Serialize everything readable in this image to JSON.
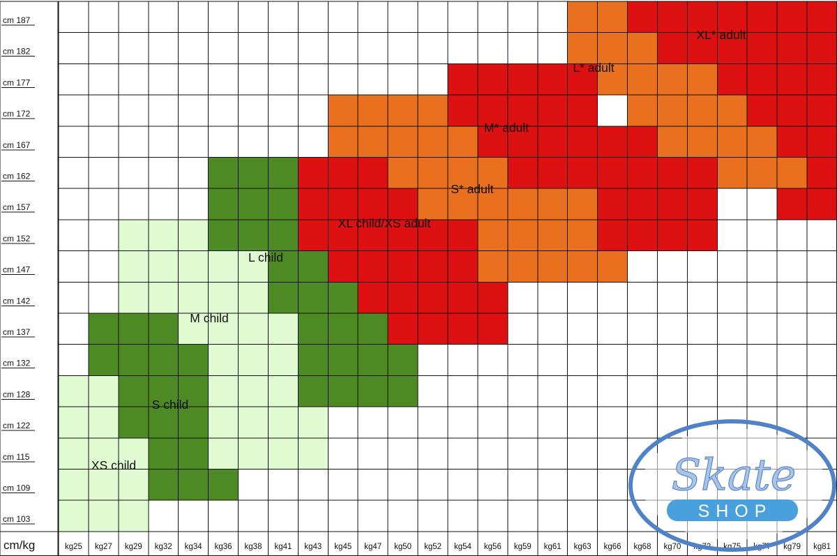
{
  "chart_data": {
    "type": "heatmap",
    "title": "",
    "axis_corner_label": "cm/kg",
    "x_ticks": [
      "kg25",
      "kg27",
      "kg29",
      "kg32",
      "kg34",
      "kg36",
      "kg38",
      "kg41",
      "kg43",
      "kg45",
      "kg47",
      "kg50",
      "kg52",
      "kg54",
      "kg56",
      "kg59",
      "kg61",
      "kg63",
      "kg66",
      "kg68",
      "kg70",
      "kg72",
      "kg75",
      "kg77",
      "kg79",
      "kg81"
    ],
    "y_ticks": [
      "cm 187",
      "cm 182",
      "cm 177",
      "cm 172",
      "cm 167",
      "cm 162",
      "cm 157",
      "cm 152",
      "cm 147",
      "cm 142",
      "cm 137",
      "cm 132",
      "cm 128",
      "cm 122",
      "cm 115",
      "cm 109",
      "cm 103"
    ],
    "grid": true,
    "zones": [
      {
        "label": "XS child",
        "color": "#e0fbd2",
        "rows": {
          "128": [
            0,
            2
          ],
          "122": [
            0,
            2
          ],
          "115": [
            0,
            2
          ],
          "109": [
            0,
            2
          ],
          "103": [
            0,
            2
          ]
        }
      },
      {
        "label": "S child",
        "color": "#4d8a24",
        "rows": {
          "137": [
            1,
            3
          ],
          "132": [
            1,
            5
          ],
          "128": [
            2,
            5
          ],
          "122": [
            2,
            5
          ],
          "115": [
            3,
            5
          ],
          "109": [
            3,
            5
          ]
        }
      },
      {
        "label": "M child",
        "color": "#e0fbd2",
        "rows": {
          "152": [
            2,
            5
          ],
          "147": [
            2,
            6
          ],
          "142": [
            2,
            6
          ],
          "137": [
            4,
            8
          ],
          "132": [
            5,
            8
          ],
          "128": [
            5,
            8
          ],
          "122": [
            5,
            8
          ],
          "115": [
            5,
            8
          ]
        }
      },
      {
        "label": "L child",
        "color": "#4d8a24",
        "rows": {
          "162": [
            5,
            7
          ],
          "157": [
            5,
            7
          ],
          "152": [
            5,
            8
          ],
          "147": [
            7,
            9
          ],
          "142": [
            7,
            10
          ],
          "137": [
            8,
            11
          ],
          "132": [
            8,
            11
          ],
          "128": [
            8,
            11
          ]
        }
      },
      {
        "label": "XL child/XS adult",
        "color": "#dd1111",
        "rows": {
          "162": [
            8,
            10
          ],
          "157": [
            8,
            11
          ],
          "152": [
            8,
            14
          ],
          "147": [
            9,
            14
          ],
          "142": [
            10,
            14
          ],
          "137": [
            11,
            14
          ]
        }
      },
      {
        "label": "S* adult",
        "color": "#e8701e",
        "rows": {
          "172": [
            9,
            12
          ],
          "167": [
            9,
            13
          ],
          "162": [
            11,
            14
          ],
          "157": [
            12,
            18
          ],
          "152": [
            14,
            18
          ],
          "147": [
            14,
            18
          ]
        }
      },
      {
        "label": "M* adult",
        "color": "#dd1111",
        "rows": {
          "177": [
            13,
            17
          ],
          "172": [
            13,
            17
          ],
          "167": [
            14,
            21
          ],
          "162": [
            15,
            21
          ],
          "157": [
            18,
            21
          ],
          "152": [
            18,
            21
          ]
        }
      },
      {
        "label": "L* adult",
        "color": "#e8701e",
        "rows": {
          "187": [
            17,
            19
          ],
          "182": [
            17,
            20
          ],
          "177": [
            18,
            22
          ],
          "172": [
            19,
            23
          ],
          "167": [
            20,
            24
          ],
          "162": [
            22,
            25
          ]
        }
      },
      {
        "label": "XL* adult",
        "color": "#dd1111",
        "rows": {
          "187": [
            19,
            25
          ],
          "182": [
            20,
            25
          ],
          "177": [
            22,
            25
          ],
          "172": [
            23,
            25
          ],
          "167": [
            24,
            25
          ],
          "162": [
            25,
            25
          ],
          "157": [
            24,
            25
          ]
        }
      }
    ]
  },
  "logo": {
    "name": "Skate",
    "sub": "SHOP"
  }
}
